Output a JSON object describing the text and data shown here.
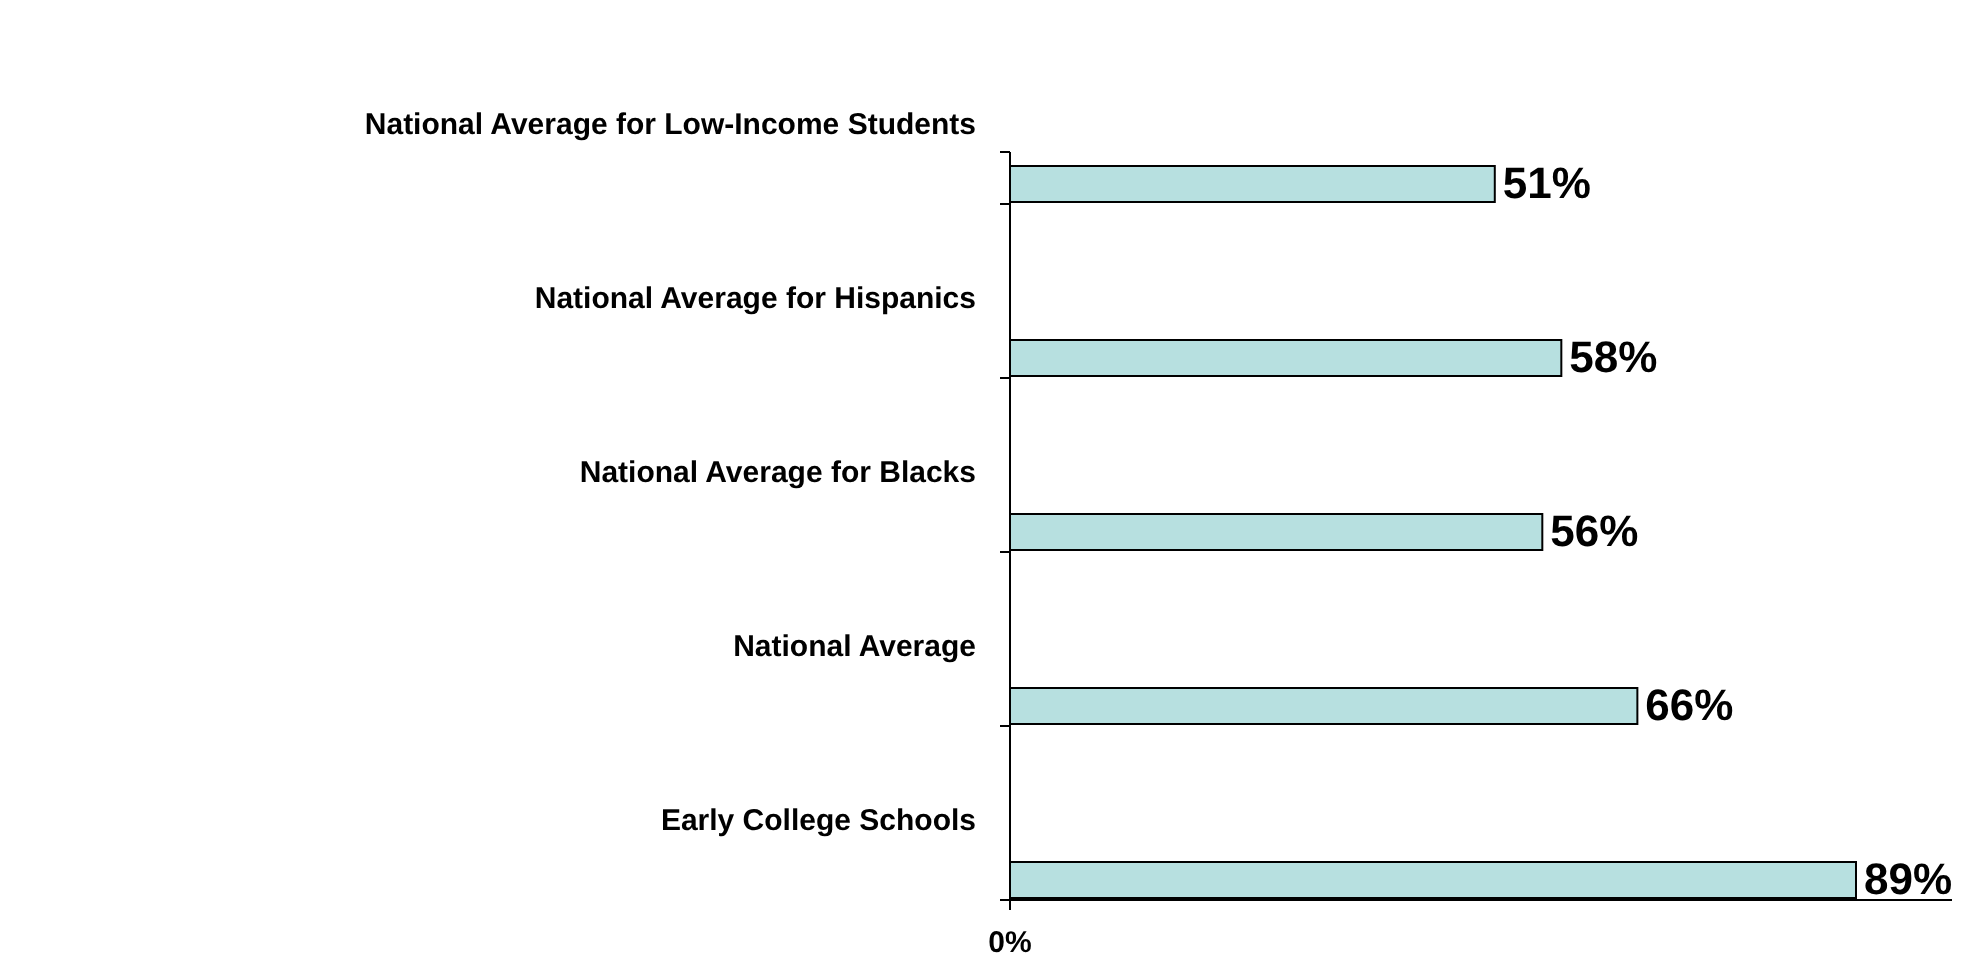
{
  "chart_data": {
    "type": "bar",
    "orientation": "horizontal",
    "categories": [
      "National Average for Low-Income Students",
      "National Average for Hispanics",
      "National Average for Blacks",
      "National Average",
      "Early College Schools"
    ],
    "values": [
      51,
      58,
      56,
      66,
      89
    ],
    "value_labels": [
      "51%",
      "58%",
      "56%",
      "66%",
      "89%"
    ],
    "color": "#b7e0e0",
    "annotations": [
      "0%"
    ]
  }
}
